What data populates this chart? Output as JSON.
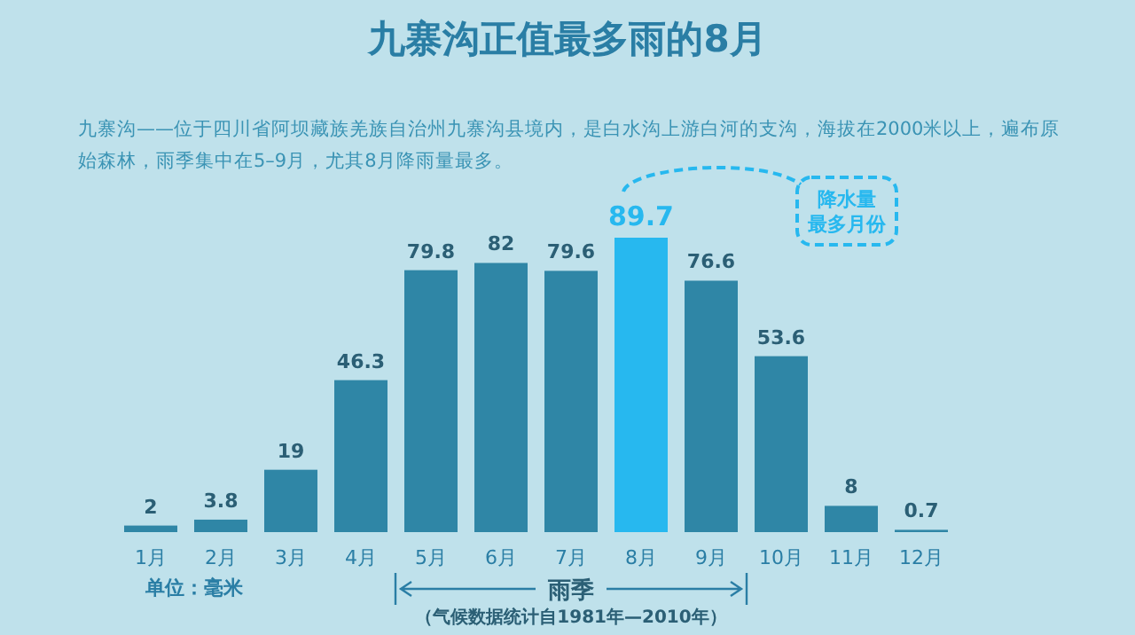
{
  "chart_data": {
    "type": "bar",
    "title": "九寨沟正值最多雨的8月",
    "subtitle": "九寨沟——位于四川省阿坝藏族羌族自治州九寨沟县境内，是白水沟上游白河的支沟，海拔在2000米以上，遍布原始森林，雨季集中在5–9月，尤其8月降雨量最多。",
    "categories": [
      "1月",
      "2月",
      "3月",
      "4月",
      "5月",
      "6月",
      "7月",
      "8月",
      "9月",
      "10月",
      "11月",
      "12月"
    ],
    "values": [
      2,
      3.8,
      19,
      46.3,
      79.8,
      82,
      79.6,
      89.7,
      76.6,
      53.6,
      8,
      0.7
    ],
    "colors": [
      "#2f86a6",
      "#2f86a6",
      "#2f86a6",
      "#2f86a6",
      "#2f86a6",
      "#2f86a6",
      "#2f86a6",
      "#27b8ef",
      "#2f86a6",
      "#2f86a6",
      "#2f86a6",
      "#2f86a6"
    ],
    "data_labels": true,
    "annotations": [
      "降水量最多月份",
      "雨季",
      "（气候数据统计自1981年—2010年）",
      "单位：毫米"
    ]
  }
}
